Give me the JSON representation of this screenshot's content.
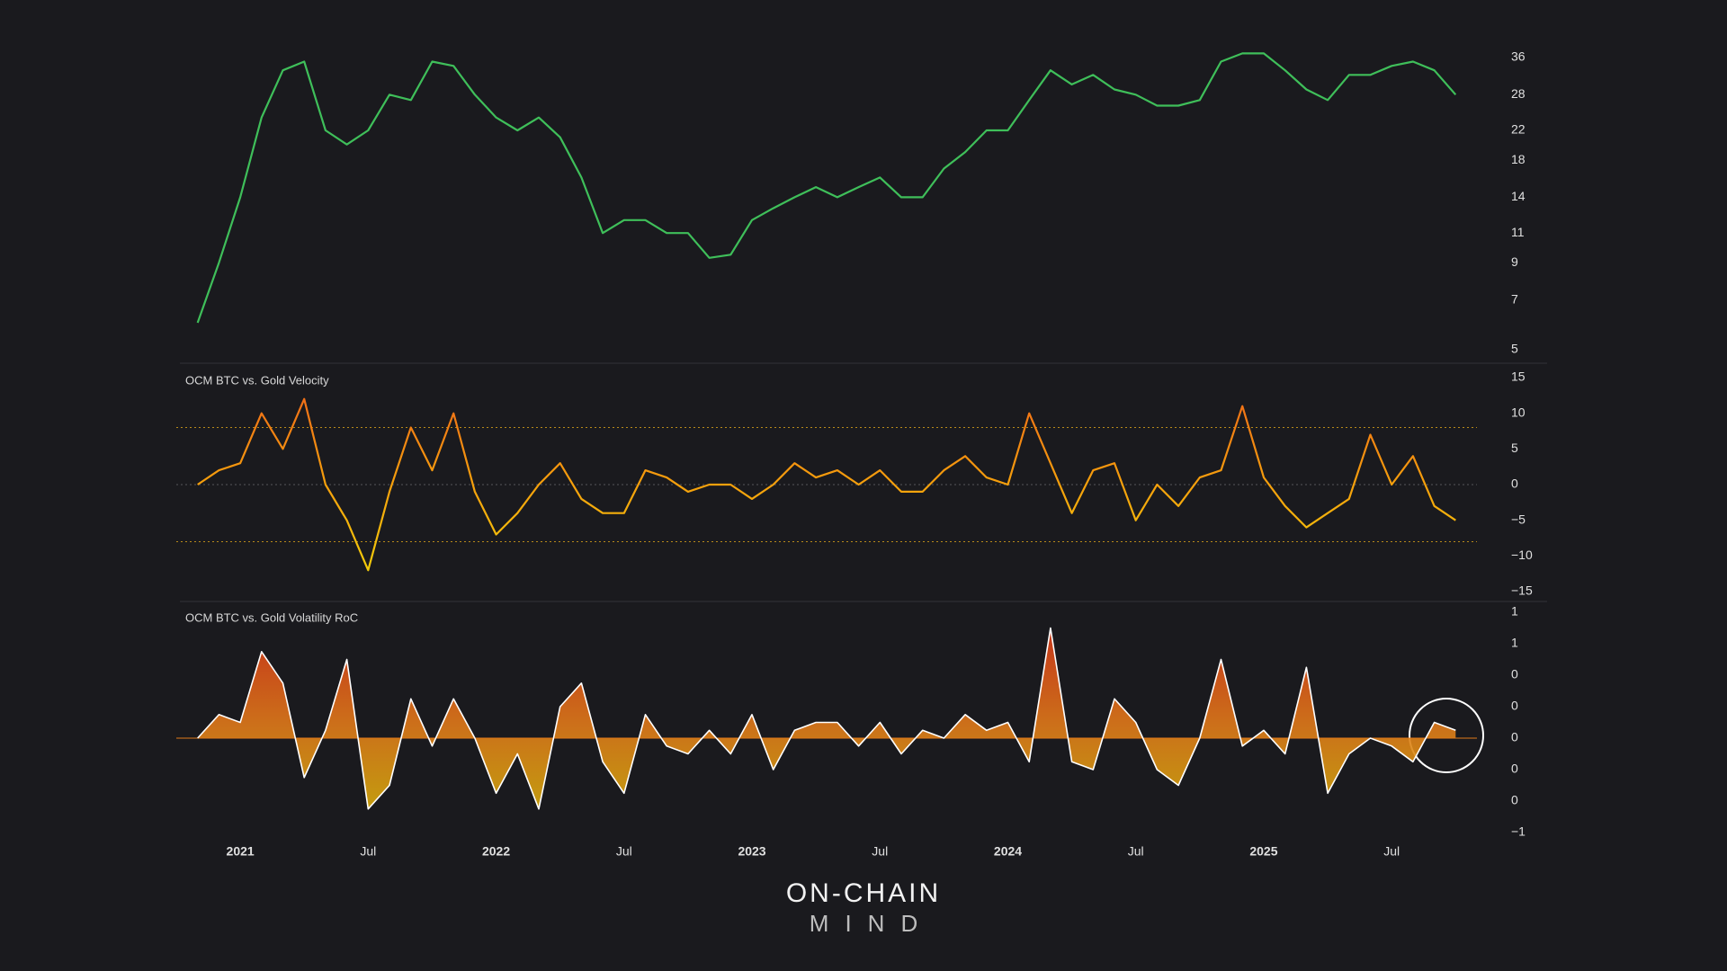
{
  "chart_data": [
    {
      "type": "line",
      "log_y": true,
      "color": "#3fbf5a",
      "x": [
        "2020-11",
        "2020-12",
        "2021-01",
        "2021-02",
        "2021-03",
        "2021-04",
        "2021-05",
        "2021-06",
        "2021-07",
        "2021-08",
        "2021-09",
        "2021-10",
        "2021-11",
        "2021-12",
        "2022-01",
        "2022-02",
        "2022-03",
        "2022-04",
        "2022-05",
        "2022-06",
        "2022-07",
        "2022-08",
        "2022-09",
        "2022-10",
        "2022-11",
        "2022-12",
        "2023-01",
        "2023-02",
        "2023-03",
        "2023-04",
        "2023-05",
        "2023-06",
        "2023-07",
        "2023-08",
        "2023-09",
        "2023-10",
        "2023-11",
        "2023-12",
        "2024-01",
        "2024-02",
        "2024-03",
        "2024-04",
        "2024-05",
        "2024-06",
        "2024-07",
        "2024-08",
        "2024-09",
        "2024-10",
        "2024-11",
        "2024-12",
        "2025-01",
        "2025-02",
        "2025-03",
        "2025-04",
        "2025-05",
        "2025-06",
        "2025-07",
        "2025-08",
        "2025-09",
        "2025-10"
      ],
      "values": [
        6,
        9,
        14,
        24,
        33,
        35,
        22,
        20,
        22,
        28,
        27,
        35,
        34,
        28,
        24,
        22,
        24,
        21,
        16,
        11,
        12,
        12,
        11,
        11,
        9.3,
        9.5,
        12,
        13,
        14,
        15,
        14,
        15,
        16,
        14,
        14,
        17,
        19,
        22,
        22,
        27,
        33,
        30,
        32,
        29,
        28,
        26,
        26,
        27,
        35,
        37,
        37,
        33,
        29,
        27,
        32,
        32,
        34,
        35,
        33,
        28
      ],
      "xlim": [
        "2020-10",
        "2025-11"
      ],
      "ylim": [
        5,
        38
      ],
      "yticks": [
        5,
        7,
        9,
        11,
        14,
        18,
        22,
        28,
        36
      ]
    },
    {
      "type": "line",
      "title": "OCM BTC vs. Gold Velocity",
      "gradient": [
        "#f0641a",
        "#f5a00c",
        "#f2d60a"
      ],
      "reference_lines": [
        8,
        -8
      ],
      "reference_color": "#b88a1a",
      "x": [
        "2020-11",
        "2020-12",
        "2021-01",
        "2021-02",
        "2021-03",
        "2021-04",
        "2021-05",
        "2021-06",
        "2021-07",
        "2021-08",
        "2021-09",
        "2021-10",
        "2021-11",
        "2021-12",
        "2022-01",
        "2022-02",
        "2022-03",
        "2022-04",
        "2022-05",
        "2022-06",
        "2022-07",
        "2022-08",
        "2022-09",
        "2022-10",
        "2022-11",
        "2022-12",
        "2023-01",
        "2023-02",
        "2023-03",
        "2023-04",
        "2023-05",
        "2023-06",
        "2023-07",
        "2023-08",
        "2023-09",
        "2023-10",
        "2023-11",
        "2023-12",
        "2024-01",
        "2024-02",
        "2024-03",
        "2024-04",
        "2024-05",
        "2024-06",
        "2024-07",
        "2024-08",
        "2024-09",
        "2024-10",
        "2024-11",
        "2024-12",
        "2025-01",
        "2025-02",
        "2025-03",
        "2025-04",
        "2025-05",
        "2025-06",
        "2025-07",
        "2025-08",
        "2025-09",
        "2025-10"
      ],
      "values": [
        0,
        2,
        3,
        10,
        5,
        12,
        0,
        -5,
        -12,
        -1,
        8,
        2,
        10,
        -1,
        -7,
        -4,
        0,
        3,
        -2,
        -4,
        -4,
        2,
        1,
        -1,
        0,
        0,
        -2,
        0,
        3,
        1,
        2,
        0,
        2,
        -1,
        -1,
        2,
        4,
        1,
        0,
        10,
        3,
        -4,
        2,
        3,
        -5,
        0,
        -3,
        1,
        2,
        11,
        1,
        -3,
        -6,
        -4,
        -2,
        7,
        0,
        4,
        -3,
        -5
      ],
      "xlim": [
        "2020-10",
        "2025-11"
      ],
      "ylim": [
        -15,
        15
      ],
      "yticks": [
        15,
        10,
        5,
        0,
        {
          "value": -5,
          "label": "−5"
        },
        {
          "value": -10,
          "label": "−10"
        },
        {
          "value": -15,
          "label": "−15"
        }
      ]
    },
    {
      "type": "area",
      "title": "OCM BTC vs. Gold Volatility RoC",
      "gradient": [
        "#d9301a",
        "#e0781a",
        "#d4b80a"
      ],
      "line_color": "#ffffff",
      "x": [
        "2020-11",
        "2020-12",
        "2021-01",
        "2021-02",
        "2021-03",
        "2021-04",
        "2021-05",
        "2021-06",
        "2021-07",
        "2021-08",
        "2021-09",
        "2021-10",
        "2021-11",
        "2021-12",
        "2022-01",
        "2022-02",
        "2022-03",
        "2022-04",
        "2022-05",
        "2022-06",
        "2022-07",
        "2022-08",
        "2022-09",
        "2022-10",
        "2022-11",
        "2022-12",
        "2023-01",
        "2023-02",
        "2023-03",
        "2023-04",
        "2023-05",
        "2023-06",
        "2023-07",
        "2023-08",
        "2023-09",
        "2023-10",
        "2023-11",
        "2023-12",
        "2024-01",
        "2024-02",
        "2024-03",
        "2024-04",
        "2024-05",
        "2024-06",
        "2024-07",
        "2024-08",
        "2024-09",
        "2024-10",
        "2024-11",
        "2024-12",
        "2025-01",
        "2025-02",
        "2025-03",
        "2025-04",
        "2025-05",
        "2025-06",
        "2025-07",
        "2025-08",
        "2025-09",
        "2025-10"
      ],
      "values": [
        0,
        0.15,
        0.1,
        0.55,
        0.35,
        -0.25,
        0.05,
        0.5,
        -0.45,
        -0.3,
        0.25,
        -0.05,
        0.25,
        0,
        -0.35,
        -0.1,
        -0.45,
        0.2,
        0.35,
        -0.15,
        -0.35,
        0.15,
        -0.05,
        -0.1,
        0.05,
        -0.1,
        0.15,
        -0.2,
        0.05,
        0.1,
        0.1,
        -0.05,
        0.1,
        -0.1,
        0.05,
        0,
        0.15,
        0.05,
        0.1,
        -0.15,
        0.7,
        -0.15,
        -0.2,
        0.25,
        0.1,
        -0.2,
        -0.3,
        0,
        0.5,
        -0.05,
        0.05,
        -0.1,
        0.45,
        -0.35,
        -0.1,
        0,
        -0.05,
        -0.15,
        0.1,
        0.05
      ],
      "xlim": [
        "2020-10",
        "2025-11"
      ],
      "ylim": [
        -0.6,
        0.8
      ],
      "yticks": [
        {
          "value": 0.8,
          "label": "1"
        },
        {
          "value": 0.6,
          "label": "1"
        },
        {
          "value": 0.4,
          "label": "0"
        },
        {
          "value": 0.2,
          "label": "0"
        },
        {
          "value": 0,
          "label": "0"
        },
        {
          "value": -0.2,
          "label": "0"
        },
        {
          "value": -0.4,
          "label": "0"
        },
        {
          "value": -0.6,
          "label": "−1"
        }
      ],
      "xticks": [
        {
          "value": "2021-01",
          "label": "2021"
        },
        {
          "value": "2021-07",
          "label": "Jul"
        },
        {
          "value": "2022-01",
          "label": "2022"
        },
        {
          "value": "2022-07",
          "label": "Jul"
        },
        {
          "value": "2023-01",
          "label": "2023"
        },
        {
          "value": "2023-07",
          "label": "Jul"
        },
        {
          "value": "2024-01",
          "label": "2024"
        },
        {
          "value": "2024-07",
          "label": "Jul"
        },
        {
          "value": "2025-01",
          "label": "2025"
        },
        {
          "value": "2025-07",
          "label": "Jul"
        }
      ]
    }
  ],
  "brand": {
    "name": "ON-CHAIN",
    "sub": "MIND"
  }
}
